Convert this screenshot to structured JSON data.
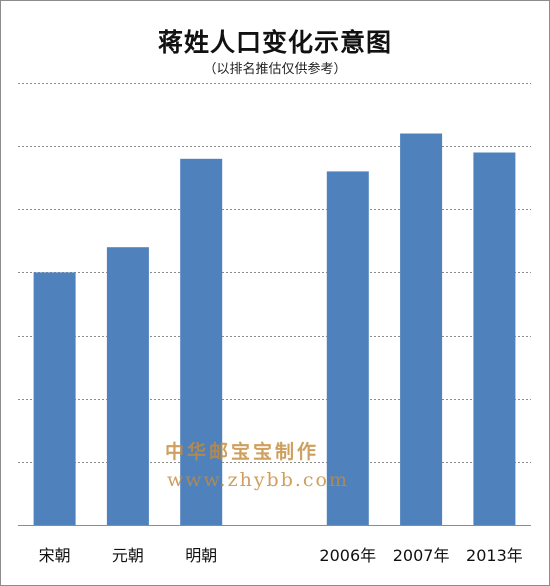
{
  "chart_data": {
    "type": "bar",
    "title": "蒋姓人口变化示意图",
    "subtitle": "（以排名推估仅供参考）",
    "categories": [
      "宋朝",
      "元朝",
      "明朝",
      "",
      "2006年",
      "2007年",
      "2013年"
    ],
    "values": [
      4.0,
      4.4,
      5.8,
      null,
      5.6,
      6.2,
      5.9
    ],
    "ylim": [
      0,
      7
    ],
    "grid": true,
    "gridline_style": "dashed",
    "legend": "none",
    "bar_color": "#4f81bd",
    "gridline_color": "#8c8c8c"
  },
  "watermark": {
    "line1": "中华邮宝宝制作",
    "line2": "www.zhybb.com",
    "color": "#c48a3a"
  }
}
